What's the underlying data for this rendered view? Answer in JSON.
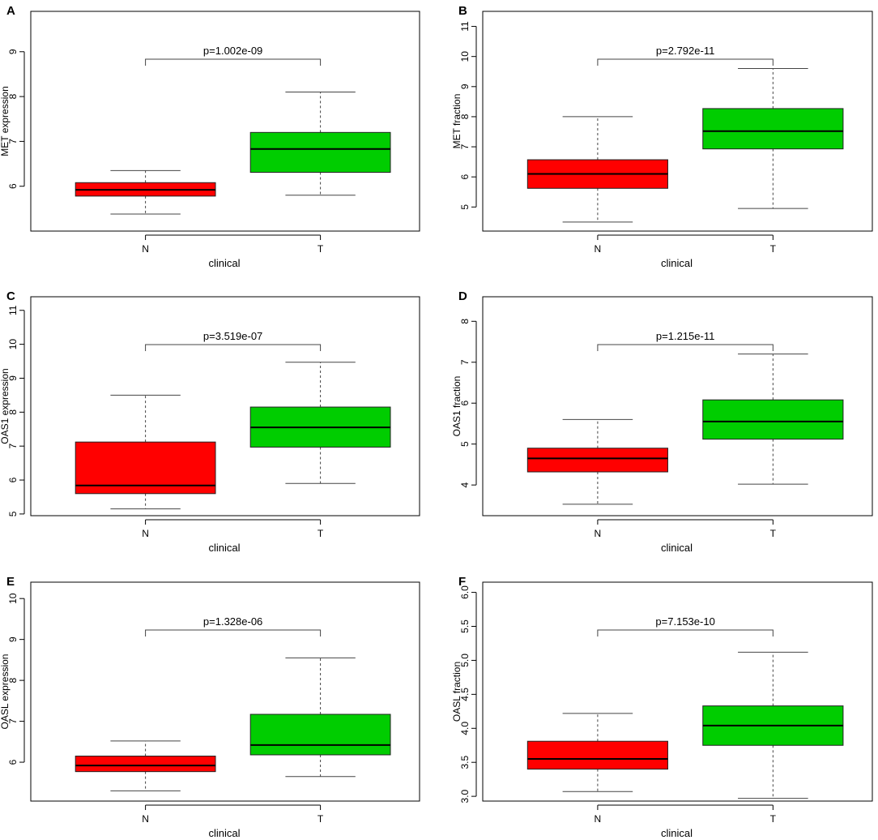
{
  "figure": {
    "background": "#ffffff"
  },
  "colors": {
    "normal_box": "#ff0000",
    "tumor_box": "#00cd00",
    "axis": "#000000",
    "whisker": "#444444"
  },
  "chart_data": [
    {
      "type": "boxplot",
      "panel": "A",
      "ylabel": "MET expression",
      "xlabel": "clinical",
      "categories": [
        "N",
        "T"
      ],
      "ylim": [
        5.0,
        9.9
      ],
      "yticks": [
        6,
        7,
        8,
        9
      ],
      "pvalue": "p=1.002e-09",
      "boxes": [
        {
          "name": "N",
          "whisker_low": 5.38,
          "q1": 5.78,
          "median": 5.92,
          "q3": 6.08,
          "whisker_high": 6.35
        },
        {
          "name": "T",
          "whisker_low": 5.8,
          "q1": 6.31,
          "median": 6.83,
          "q3": 7.2,
          "whisker_high": 8.1
        }
      ]
    },
    {
      "type": "boxplot",
      "panel": "B",
      "ylabel": "MET fraction",
      "xlabel": "clinical",
      "categories": [
        "N",
        "T"
      ],
      "ylim": [
        4.2,
        11.5
      ],
      "yticks": [
        5,
        6,
        7,
        8,
        9,
        10,
        11
      ],
      "pvalue": "p=2.792e-11",
      "boxes": [
        {
          "name": "N",
          "whisker_low": 4.5,
          "q1": 5.62,
          "median": 6.1,
          "q3": 6.57,
          "whisker_high": 8.0
        },
        {
          "name": "T",
          "whisker_low": 4.95,
          "q1": 6.93,
          "median": 7.52,
          "q3": 8.27,
          "whisker_high": 9.6
        }
      ]
    },
    {
      "type": "boxplot",
      "panel": "C",
      "ylabel": "OAS1 expression",
      "xlabel": "clinical",
      "categories": [
        "N",
        "T"
      ],
      "ylim": [
        4.95,
        11.4
      ],
      "yticks": [
        5,
        6,
        7,
        8,
        9,
        10,
        11
      ],
      "pvalue": "p=3.519e-07",
      "boxes": [
        {
          "name": "N",
          "whisker_low": 5.15,
          "q1": 5.6,
          "median": 5.84,
          "q3": 7.12,
          "whisker_high": 8.5
        },
        {
          "name": "T",
          "whisker_low": 5.9,
          "q1": 6.97,
          "median": 7.55,
          "q3": 8.15,
          "whisker_high": 9.47
        }
      ]
    },
    {
      "type": "boxplot",
      "panel": "D",
      "ylabel": "OAS1 fraction",
      "xlabel": "clinical",
      "categories": [
        "N",
        "T"
      ],
      "ylim": [
        3.25,
        8.6
      ],
      "yticks": [
        4,
        5,
        6,
        7,
        8
      ],
      "pvalue": "p=1.215e-11",
      "boxes": [
        {
          "name": "N",
          "whisker_low": 3.53,
          "q1": 4.32,
          "median": 4.65,
          "q3": 4.9,
          "whisker_high": 5.6
        },
        {
          "name": "T",
          "whisker_low": 4.02,
          "q1": 5.12,
          "median": 5.55,
          "q3": 6.08,
          "whisker_high": 7.2
        }
      ]
    },
    {
      "type": "boxplot",
      "panel": "E",
      "ylabel": "OASL expression",
      "xlabel": "clinical",
      "categories": [
        "N",
        "T"
      ],
      "ylim": [
        5.05,
        10.4
      ],
      "yticks": [
        6,
        7,
        8,
        9,
        10
      ],
      "pvalue": "p=1.328e-06",
      "boxes": [
        {
          "name": "N",
          "whisker_low": 5.3,
          "q1": 5.77,
          "median": 5.92,
          "q3": 6.15,
          "whisker_high": 6.52
        },
        {
          "name": "T",
          "whisker_low": 5.65,
          "q1": 6.18,
          "median": 6.42,
          "q3": 7.17,
          "whisker_high": 8.55
        }
      ]
    },
    {
      "type": "boxplot",
      "panel": "F",
      "ylabel": "OASL fraction",
      "xlabel": "clinical",
      "categories": [
        "N",
        "T"
      ],
      "ylim": [
        2.93,
        6.15
      ],
      "yticks": [
        3.0,
        3.5,
        4.0,
        4.5,
        5.0,
        5.5,
        6.0
      ],
      "pvalue": "p=7.153e-10",
      "boxes": [
        {
          "name": "N",
          "whisker_low": 3.07,
          "q1": 3.4,
          "median": 3.55,
          "q3": 3.81,
          "whisker_high": 4.22
        },
        {
          "name": "T",
          "whisker_low": 2.97,
          "q1": 3.75,
          "median": 4.04,
          "q3": 4.33,
          "whisker_high": 5.12
        }
      ]
    }
  ]
}
